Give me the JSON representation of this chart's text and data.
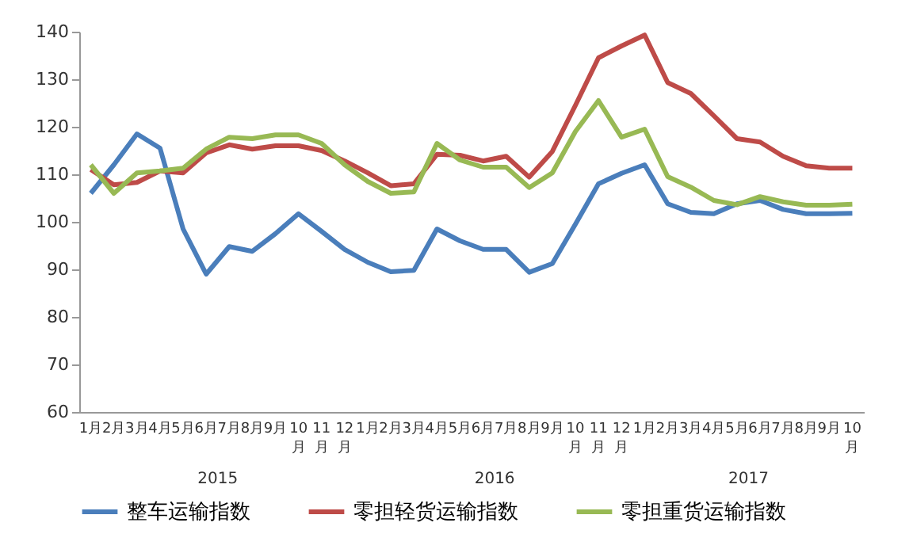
{
  "chart_data": {
    "type": "line",
    "categories": [
      "1月",
      "2月",
      "3月",
      "4月",
      "5月",
      "6月",
      "7月",
      "8月",
      "9月",
      "10月",
      "11月",
      "12月",
      "1月",
      "2月",
      "3月",
      "4月",
      "5月",
      "6月",
      "7月",
      "8月",
      "9月",
      "10月",
      "11月",
      "12月",
      "1月",
      "2月",
      "3月",
      "4月",
      "5月",
      "6月",
      "7月",
      "8月",
      "9月",
      "10月"
    ],
    "series": [
      {
        "name": "整车运输指数",
        "color": "#4a7ebb",
        "values": [
          106,
          112,
          118.5,
          115.5,
          98.5,
          89,
          94.8,
          93.8,
          97.5,
          101.7,
          98,
          94.2,
          91.5,
          89.5,
          89.8,
          98.5,
          96,
          94.2,
          94.2,
          89.4,
          91.2,
          99.5,
          108,
          110.2,
          112,
          103.8,
          102,
          101.7,
          103.8,
          104.5,
          102.6,
          101.7,
          101.7,
          101.8
        ]
      },
      {
        "name": "零担轻货运输指数",
        "color": "#be4b48",
        "values": [
          111,
          107.8,
          108.3,
          110.7,
          110.3,
          114.5,
          116.2,
          115.3,
          116,
          116,
          115,
          112.8,
          110.3,
          107.6,
          108,
          114.2,
          114,
          112.8,
          113.8,
          109.4,
          114.8,
          124.5,
          134.5,
          137,
          139.3,
          129.3,
          127,
          122.3,
          117.5,
          116.8,
          113.8,
          111.8,
          111.3,
          111.3
        ]
      },
      {
        "name": "零担重货运输指数",
        "color": "#98b954",
        "values": [
          112,
          106,
          110.3,
          110.7,
          111.3,
          115.3,
          117.8,
          117.5,
          118.3,
          118.3,
          116.5,
          112,
          108.5,
          106,
          106.3,
          116.5,
          113,
          111.5,
          111.5,
          107.2,
          110.3,
          119,
          125.5,
          117.8,
          119.5,
          109.5,
          107.3,
          104.5,
          103.6,
          105.3,
          104.2,
          103.5,
          103.5,
          103.7
        ]
      }
    ],
    "ylim": [
      60,
      140
    ],
    "yticks": [
      60,
      70,
      80,
      90,
      100,
      110,
      120,
      130,
      140
    ],
    "annotations": [
      "2015",
      "2016",
      "2017"
    ],
    "legend": "bottom",
    "grid": false
  }
}
